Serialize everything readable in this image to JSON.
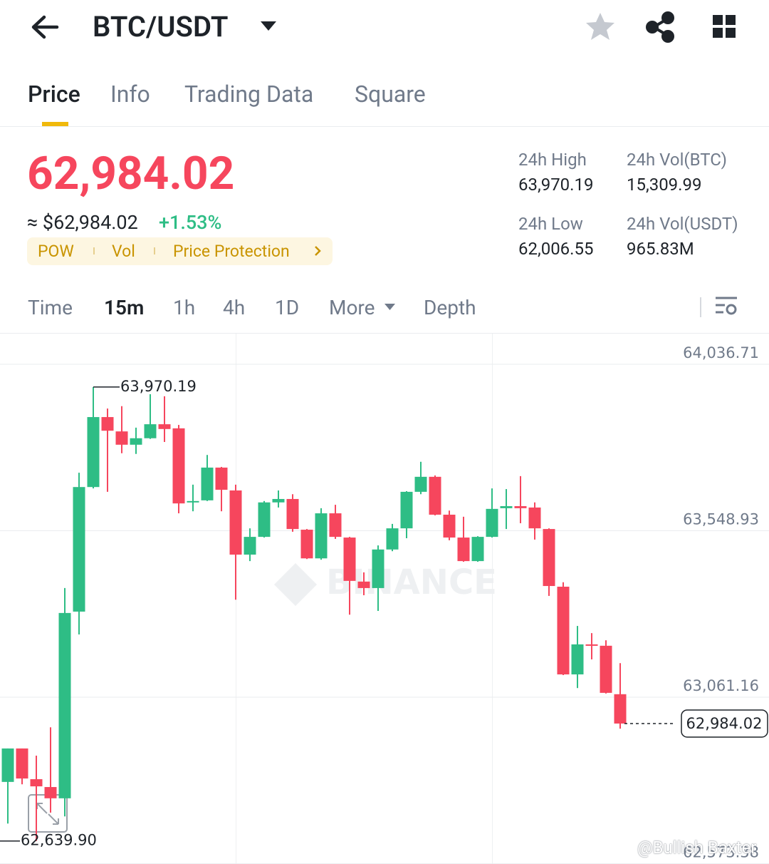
{
  "header": {
    "pair": "BTC/USDT"
  },
  "tabs": [
    "Price",
    "Info",
    "Trading Data",
    "Square"
  ],
  "ticker": {
    "price": "62,984.02",
    "approx": "≈ $62,984.02",
    "change": "+1.53%",
    "tags": [
      "POW",
      "Vol",
      "Price Protection"
    ]
  },
  "stats": [
    {
      "label": "24h High",
      "value": "63,970.19"
    },
    {
      "label": "24h Vol(BTC)",
      "value": "15,309.99"
    },
    {
      "label": "24h Low",
      "value": "62,006.55"
    },
    {
      "label": "24h Vol(USDT)",
      "value": "965.83M"
    }
  ],
  "intervals": [
    "Time",
    "15m",
    "1h",
    "4h",
    "1D",
    "More",
    "Depth"
  ],
  "chart_data": {
    "type": "candlestick",
    "watermark": "BINANCE",
    "up_color": "#2ebd85",
    "down_color": "#f6465d",
    "grid": true,
    "ylim": [
      62572.5,
      64126.5
    ],
    "yticks": [
      {
        "value": 64036.71,
        "label": "64,036.71"
      },
      {
        "value": 63548.93,
        "label": "63,548.93"
      },
      {
        "value": 63061.16,
        "label": "63,061.16"
      },
      {
        "value": 62573.38,
        "label": "62,573.38"
      }
    ],
    "high_marker": {
      "value": 63970.19,
      "label": "63,970.19"
    },
    "low_marker": {
      "value": 62639.9,
      "label": "62,639.90"
    },
    "last_price": {
      "value": 62984.02,
      "label": "62,984.02"
    },
    "open": [
      62813,
      62911,
      62821,
      62798,
      62765,
      63312,
      63677,
      63882,
      63840,
      63801,
      63820,
      63861,
      63849,
      63632,
      63638,
      63734,
      63667,
      63479,
      63531,
      63632,
      63642,
      63552,
      63468,
      63600,
      63529,
      63400,
      63381,
      63494,
      63556,
      63663,
      63707,
      63596,
      63529,
      63460,
      63531,
      63615,
      63621,
      63617,
      63554,
      63385,
      63128,
      63216,
      63212,
      63070
    ],
    "close": [
      62911,
      62823,
      62800,
      62765,
      63308,
      63677,
      63882,
      63842,
      63801,
      63820,
      63861,
      63847,
      63629,
      63636,
      63734,
      63669,
      63479,
      63531,
      63632,
      63642,
      63554,
      63468,
      63600,
      63531,
      63402,
      63381,
      63494,
      63556,
      63663,
      63707,
      63596,
      63529,
      63460,
      63531,
      63613,
      63621,
      63615,
      63556,
      63387,
      63128,
      63216,
      63214,
      63074,
      62984.02
    ],
    "high": [
      62911,
      62911,
      62890,
      62973,
      63381,
      63719,
      63970.19,
      63907,
      63914,
      63851,
      63949,
      63943,
      63859,
      63684,
      63771,
      63736,
      63684,
      63556,
      63636,
      63667,
      63656,
      63554,
      63615,
      63625,
      63531,
      63427,
      63506,
      63569,
      63665,
      63751,
      63711,
      63608,
      63590,
      63533,
      63673,
      63671,
      63709,
      63632,
      63556,
      63398,
      63270,
      63249,
      63228,
      63161
    ],
    "low": [
      62691,
      62806,
      62639.9,
      62723,
      62712,
      63245,
      63673,
      63663,
      63776,
      63774,
      63818,
      63809,
      63600,
      63606,
      63636,
      63606,
      63347,
      63460,
      63529,
      63617,
      63546,
      63466,
      63464,
      63525,
      63303,
      63360,
      63314,
      63489,
      63527,
      63656,
      63594,
      63521,
      63458,
      63458,
      63529,
      63554,
      63571,
      63523,
      63358,
      63126,
      63088,
      63172,
      63072,
      62969
    ]
  },
  "watermark": "@Bullish Baxter"
}
